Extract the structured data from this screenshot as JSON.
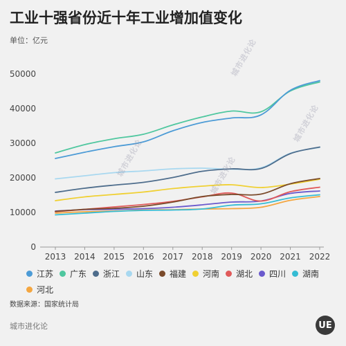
{
  "header": {
    "title": "工业十强省份近十年工业增加值变化",
    "unit": "单位：亿元"
  },
  "source": "数据来源：国家统计局",
  "brand": "城市进化论",
  "logo_text": "UE",
  "watermark": "城市进化论",
  "chart_data": {
    "type": "line",
    "title": "工业十强省份近十年工业增加值变化",
    "ylabel": "单位：亿元",
    "xlabel": "",
    "x": [
      "2013",
      "2014",
      "2015",
      "2016",
      "2017",
      "2018",
      "2019",
      "2020",
      "2021",
      "2022"
    ],
    "ylim": [
      0,
      50000
    ],
    "yticks": [
      0,
      10000,
      20000,
      30000,
      40000,
      50000
    ],
    "grid": false,
    "legend_position": "bottom",
    "series": [
      {
        "name": "江苏",
        "color": "#4c9bd6",
        "values": [
          25600,
          27400,
          29000,
          30400,
          33600,
          36000,
          37300,
          38200,
          45300,
          48100
        ]
      },
      {
        "name": "广东",
        "color": "#4fc79f",
        "values": [
          27200,
          29600,
          31300,
          32600,
          35300,
          37600,
          39300,
          39100,
          45100,
          47700
        ]
      },
      {
        "name": "浙江",
        "color": "#4e6d8c",
        "values": [
          15800,
          17000,
          17900,
          18700,
          20100,
          21900,
          22600,
          22700,
          27000,
          28900
        ]
      },
      {
        "name": "山东",
        "color": "#a8d8f0",
        "values": [
          19700,
          20600,
          21500,
          22000,
          22600,
          22800,
          22500,
          22900,
          27100,
          28800
        ]
      },
      {
        "name": "福建",
        "color": "#7a4a2a",
        "values": [
          10300,
          10900,
          11200,
          11800,
          13000,
          14600,
          15200,
          15300,
          18300,
          19800
        ]
      },
      {
        "name": "河南",
        "color": "#f0d032",
        "values": [
          13400,
          14500,
          15200,
          15900,
          16900,
          17600,
          18000,
          17200,
          18200,
          19600
        ]
      },
      {
        "name": "湖北",
        "color": "#e05a5a",
        "values": [
          10200,
          10900,
          11600,
          12300,
          13200,
          14500,
          15600,
          13300,
          16000,
          17300
        ]
      },
      {
        "name": "四川",
        "color": "#6a5acd",
        "values": [
          10400,
          10800,
          10900,
          11100,
          11500,
          12200,
          13000,
          13300,
          15500,
          16200
        ]
      },
      {
        "name": "湖南",
        "color": "#35bcd4",
        "values": [
          9300,
          9800,
          10300,
          10600,
          10700,
          11000,
          12100,
          12500,
          14200,
          15100
        ]
      },
      {
        "name": "河北",
        "color": "#f4a640",
        "values": [
          9800,
          10200,
          10400,
          10700,
          10800,
          11000,
          11100,
          11500,
          13500,
          14600
        ]
      }
    ]
  }
}
